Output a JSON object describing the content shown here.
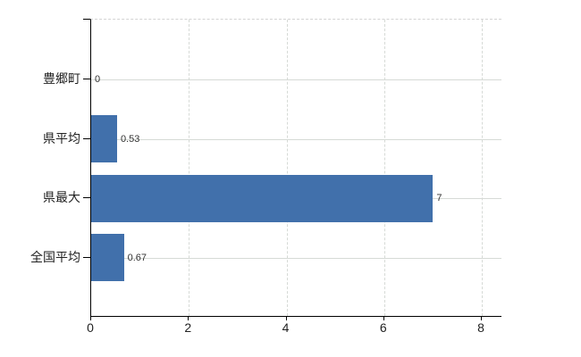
{
  "chart_data": {
    "type": "bar",
    "orientation": "horizontal",
    "title": "",
    "xlabel": "",
    "ylabel": "",
    "categories": [
      "豊郷町",
      "県平均",
      "県最大",
      "全国平均"
    ],
    "values": [
      0,
      0.53,
      7,
      0.67
    ],
    "value_labels": [
      "0",
      "0.53",
      "7",
      "0.67"
    ],
    "xticks": [
      0,
      2,
      4,
      6,
      8
    ],
    "xtick_labels": [
      "0",
      "2",
      "4",
      "6",
      "8"
    ],
    "xlim": [
      0,
      8.4
    ],
    "grid": true,
    "legend": false,
    "colors": {
      "bar": "#4170ab",
      "gridline": "#d6dad6",
      "axis": "#000000",
      "text": "#222222",
      "value_text": "#333333",
      "background": "#ffffff"
    }
  }
}
